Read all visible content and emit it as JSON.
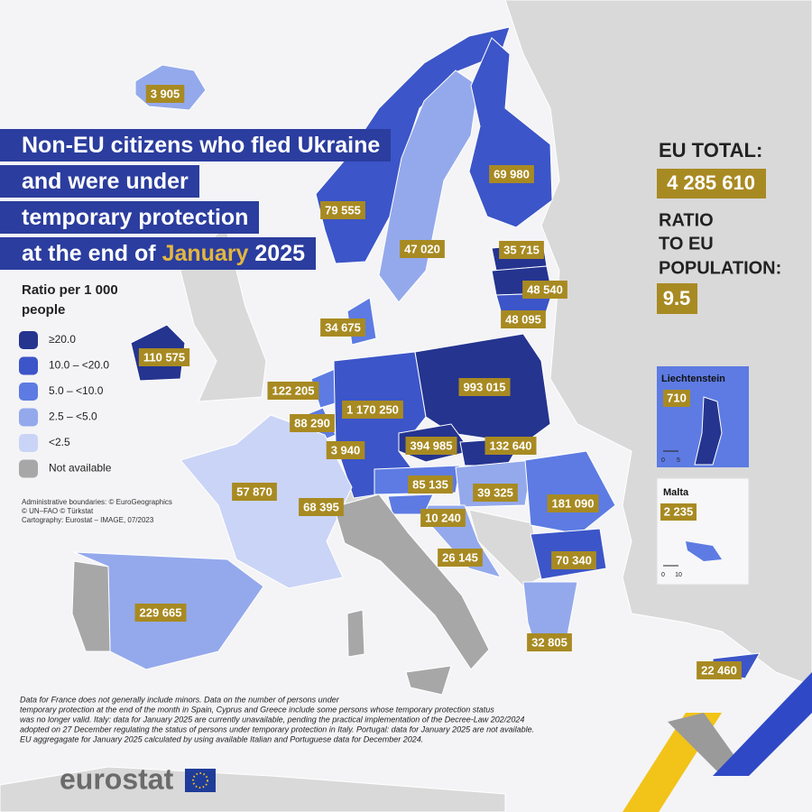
{
  "title": {
    "lines": [
      "Non-EU citizens who fled Ukraine",
      "and were under",
      "temporary protection"
    ],
    "last_line": {
      "prefix": "at the end of",
      "highlight": "January",
      "suffix": "2025"
    }
  },
  "legend": {
    "title_lines": [
      "Ratio per 1 000",
      "people"
    ],
    "items": [
      {
        "label": "≥20.0",
        "color": "#25348f"
      },
      {
        "label": "10.0 – <20.0",
        "color": "#3c55c8"
      },
      {
        "label": "5.0 – <10.0",
        "color": "#5d7be2"
      },
      {
        "label": "2.5 – <5.0",
        "color": "#94a9ec"
      },
      {
        "label": "<2.5",
        "color": "#cad4f6"
      },
      {
        "label": "Not available",
        "color": "#a7a7a7"
      }
    ]
  },
  "summary": {
    "total_label": "EU TOTAL:",
    "total_value": "4 285 610",
    "ratio_label_lines": [
      "RATIO",
      "TO EU",
      "POPULATION:"
    ],
    "ratio_value": "9.5"
  },
  "region_labels": [
    "3 905",
    "79 555",
    "69 980",
    "47 020",
    "35 715",
    "48 540",
    "48 095",
    "34 675",
    "110 575",
    "993 015",
    "122 205",
    "1 170 250",
    "88 290",
    "394 985",
    "132 640",
    "3 940",
    "85 135",
    "39 325",
    "181 090",
    "57 870",
    "68 395",
    "10 240",
    "26 145",
    "70 340",
    "229 665",
    "32 805",
    "22 460"
  ],
  "insets": [
    {
      "title": "Liechtenstein",
      "value": "710",
      "scale": [
        "0",
        "5"
      ]
    },
    {
      "title": "Malta",
      "value": "2 235",
      "scale": [
        "0",
        "10"
      ]
    }
  ],
  "credits": [
    "Administrative boundaries: © EuroGeographics",
    "© UN–FAO © Türkstat",
    "Cartography: Eurostat – IMAGE, 07/2023"
  ],
  "footnote": [
    "Data for France does not generally include minors. Data on the number of persons under",
    "temporary protection at the end of the month in Spain, Cyprus and Greece include some persons whose temporary protection status",
    "was no longer valid. Italy: data for January 2025 are currently unavailable, pending the practical implementation of the Decree-Law 202/2024",
    "adopted on 27 December regulating the status of persons under temporary protection in Italy. Portugal: data for January 2025 are not available.",
    "EU aggregagate for January 2025 calculated by using available Italian and Portuguese data for December 2024."
  ],
  "logo": "eurostat"
}
